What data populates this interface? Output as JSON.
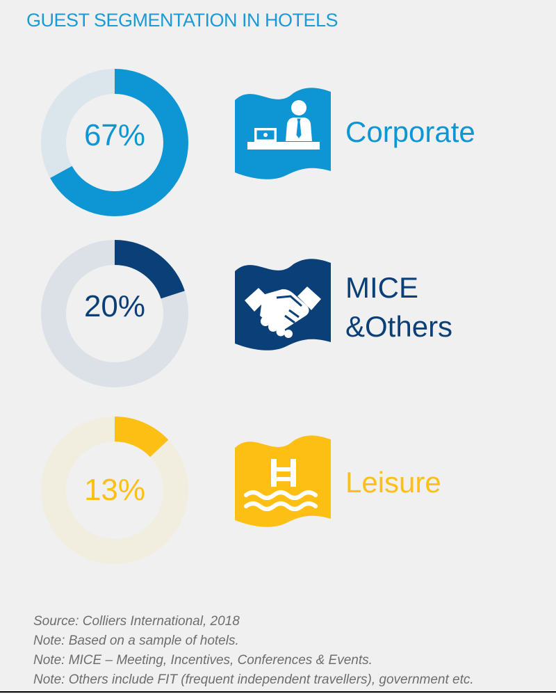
{
  "title": "GUEST SEGMENTATION IN HOTELS",
  "chart_data": {
    "type": "pie",
    "style": "donut",
    "title": "GUEST SEGMENTATION IN HOTELS",
    "categories": [
      "Corporate",
      "MICE &Others",
      "Leisure"
    ],
    "values": [
      67,
      20,
      13
    ],
    "unit": "%",
    "segments": [
      {
        "value": 67,
        "value_label": "67%",
        "label_lines": [
          "Corporate"
        ],
        "color": "#0e95d4",
        "track_color": "#dbe6ec",
        "icon": "reception-desk-icon"
      },
      {
        "value": 20,
        "value_label": "20%",
        "label_lines": [
          "MICE",
          "&Others"
        ],
        "color": "#0a3f78",
        "track_color": "#dce1e7",
        "icon": "handshake-icon"
      },
      {
        "value": 13,
        "value_label": "13%",
        "label_lines": [
          "Leisure"
        ],
        "color": "#fdbf14",
        "track_color": "#f1eddf",
        "icon": "swimming-pool-icon"
      }
    ]
  },
  "notes": [
    "Source: Colliers International, 2018",
    "Note: Based on a sample of hotels.",
    "Note: MICE – Meeting, Incentives, Conferences & Events.",
    "Note: Others include FIT (frequent independent travellers), government etc."
  ]
}
